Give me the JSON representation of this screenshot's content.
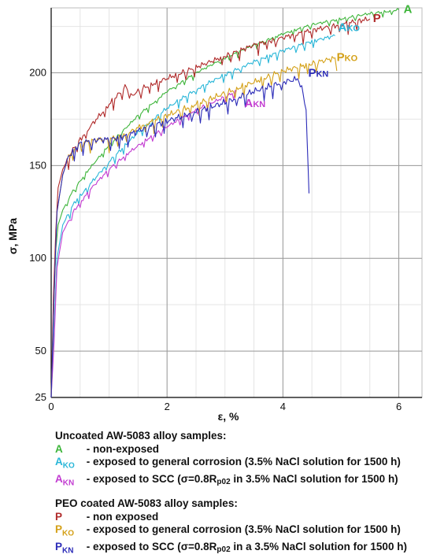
{
  "chart_data": {
    "type": "line",
    "xlabel": "ε, %",
    "ylabel": "σ, MPa",
    "xlim": [
      0,
      6.4
    ],
    "ylim": [
      25,
      235
    ],
    "xticks": [
      0,
      2,
      4,
      6
    ],
    "yticks": [
      25,
      50,
      100,
      150,
      200
    ],
    "grid": true,
    "colors": {
      "A": "#3db53a",
      "AKO": "#29b6d8",
      "AKN": "#c23bd1",
      "P": "#b02a2a",
      "PKO": "#d4a017",
      "PKN": "#2b2bb8"
    },
    "series": [
      {
        "name": "A",
        "color": "#3db53a",
        "x": [
          0,
          0.04,
          0.08,
          0.12,
          0.2,
          0.35,
          0.6,
          1.0,
          1.5,
          2.0,
          2.5,
          3.0,
          3.5,
          4.0,
          4.5,
          5.0,
          5.5,
          5.8,
          6.0
        ],
        "y": [
          25,
          70,
          105,
          118,
          126,
          135,
          146,
          161,
          177,
          190,
          200,
          208,
          215,
          221,
          226,
          229,
          232,
          233,
          234
        ]
      },
      {
        "name": "P",
        "color": "#b02a2a",
        "x": [
          0,
          0.04,
          0.08,
          0.12,
          0.2,
          0.4,
          0.7,
          1.0,
          1.3,
          1.35,
          1.6,
          2.0,
          2.5,
          3.0,
          3.5,
          4.0,
          4.5,
          5.0,
          5.3,
          5.5
        ],
        "y": [
          25,
          80,
          115,
          138,
          148,
          160,
          172,
          183,
          193,
          187,
          192,
          197,
          203,
          209,
          215,
          219,
          223,
          226,
          228,
          229
        ]
      },
      {
        "name": "AKO",
        "color": "#29b6d8",
        "x": [
          0,
          0.05,
          0.1,
          0.2,
          0.4,
          0.7,
          1.0,
          1.5,
          2.0,
          2.5,
          3.0,
          3.5,
          4.0,
          4.5,
          4.9
        ],
        "y": [
          25,
          60,
          100,
          118,
          130,
          141,
          152,
          168,
          181,
          191,
          199,
          206,
          212,
          217,
          220
        ]
      },
      {
        "name": "AKN",
        "color": "#c23bd1",
        "x": [
          0,
          0.05,
          0.1,
          0.2,
          0.4,
          0.7,
          1.0,
          1.3,
          1.6,
          2.0,
          2.5,
          3.0,
          3.2
        ],
        "y": [
          25,
          55,
          95,
          114,
          126,
          138,
          148,
          156,
          163,
          171,
          180,
          187,
          190
        ]
      },
      {
        "name": "PKO",
        "color": "#d4a017",
        "x": [
          0,
          0.05,
          0.1,
          0.2,
          0.3,
          0.5,
          0.8,
          1.0,
          1.3,
          1.6,
          2.0,
          2.5,
          3.0,
          3.5,
          4.0,
          4.5,
          4.9,
          4.93
        ],
        "y": [
          25,
          80,
          125,
          145,
          155,
          162,
          164,
          164,
          167,
          172,
          177,
          183,
          189,
          195,
          201,
          205,
          208,
          201
        ]
      },
      {
        "name": "PKN",
        "color": "#2b2bb8",
        "x": [
          0,
          0.05,
          0.1,
          0.2,
          0.3,
          0.5,
          0.8,
          1.0,
          1.3,
          1.6,
          2.0,
          2.5,
          3.0,
          3.5,
          4.0,
          4.3,
          4.4,
          4.45
        ],
        "y": [
          25,
          80,
          125,
          145,
          155,
          162,
          164,
          164,
          166,
          170,
          174,
          179,
          184,
          190,
          195,
          197,
          180,
          135
        ]
      }
    ],
    "annotations": [
      {
        "series": "A",
        "text": "A",
        "sub": ""
      },
      {
        "series": "AKO",
        "text": "A",
        "sub": "KO"
      },
      {
        "series": "P",
        "text": "P",
        "sub": ""
      },
      {
        "series": "PKO",
        "text": "P",
        "sub": "KO"
      },
      {
        "series": "PKN",
        "text": "P",
        "sub": "KN"
      },
      {
        "series": "AKN",
        "text": "A",
        "sub": "KN"
      }
    ]
  },
  "legend": {
    "uncoated_title": "Uncoated AW-5083 alloy samples:",
    "uncoated": [
      {
        "code": "A",
        "sub": "",
        "text": " - non-exposed"
      },
      {
        "code": "A",
        "sub": "KO",
        "text": " - exposed to general corrosion (3.5% NaCl solution for 1500 h)"
      },
      {
        "code": "A",
        "sub": "KN",
        "text": " - exposed to SCC (σ=0.8R",
        "sub2": "p02",
        "text2": " in 3.5% NaCl solution for 1500 h)"
      }
    ],
    "coated_title": "PEO coated AW-5083 alloy samples:",
    "coated": [
      {
        "code": "P",
        "sub": "",
        "text": " - non exposed"
      },
      {
        "code": "P",
        "sub": "KO",
        "text": " - exposed to general corrosion (3.5% NaCl solution for 1500 h)"
      },
      {
        "code": "P",
        "sub": "KN",
        "text": " - exposed to SCC (σ=0.8R",
        "sub2": "p02",
        "text2": " in a 3.5% NaCl solution for 1500 h)"
      }
    ]
  }
}
